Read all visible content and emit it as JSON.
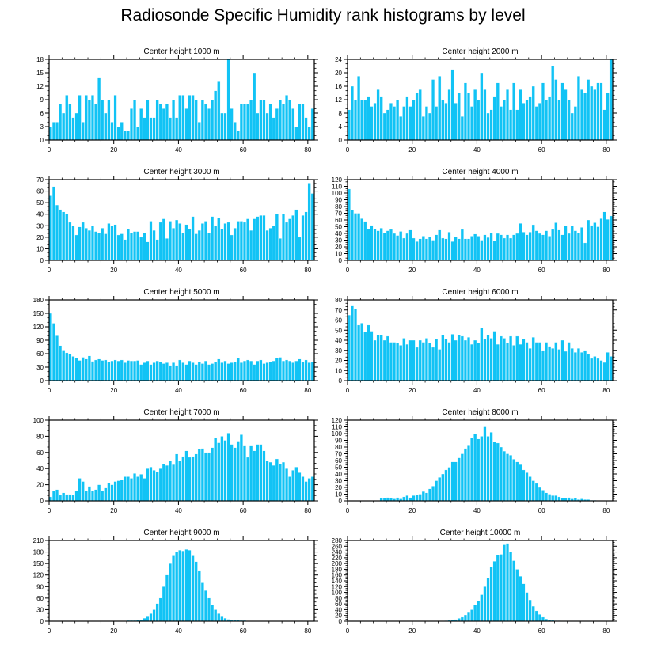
{
  "title": "Radiosonde Specific Humidity rank histograms by level",
  "colors": {
    "bar": "#11c3f5",
    "bar_stroke": "#ffffff",
    "axis": "#000000"
  },
  "chart_data": [
    {
      "type": "bar",
      "title": "Center height 1000 m",
      "xlabel": "",
      "ylabel": "",
      "xlim": [
        0,
        82
      ],
      "ylim": [
        0,
        18
      ],
      "xticks": [
        0,
        20,
        40,
        60,
        80
      ],
      "yticks": [
        0,
        3,
        6,
        9,
        12,
        15,
        18
      ],
      "values": [
        3,
        4,
        4,
        8,
        6,
        10,
        8,
        5,
        6,
        10,
        4,
        10,
        9,
        10,
        8,
        14,
        9,
        6,
        9,
        4,
        10,
        3,
        4,
        2,
        2,
        7,
        9,
        3,
        7,
        5,
        9,
        5,
        5,
        9,
        8,
        7,
        8,
        5,
        9,
        5,
        10,
        10,
        7,
        10,
        10,
        9,
        4,
        9,
        8,
        7,
        9,
        11,
        13,
        6,
        6,
        18,
        7,
        4,
        2,
        8,
        8,
        8,
        9,
        15,
        6,
        9,
        9,
        6,
        8,
        5,
        7,
        9,
        8,
        10,
        9,
        7,
        3,
        8,
        8,
        5,
        3,
        7
      ]
    },
    {
      "type": "bar",
      "title": "Center height 2000 m",
      "xlabel": "",
      "ylabel": "",
      "xlim": [
        0,
        82
      ],
      "ylim": [
        0,
        24
      ],
      "xticks": [
        0,
        20,
        40,
        60,
        80
      ],
      "yticks": [
        0,
        4,
        8,
        12,
        16,
        20,
        24
      ],
      "values": [
        9,
        16,
        12,
        19,
        12,
        12,
        13,
        10,
        11,
        15,
        13,
        8,
        9,
        11,
        10,
        12,
        7,
        10,
        13,
        10,
        12,
        14,
        15,
        7,
        10,
        8,
        18,
        10,
        19,
        12,
        11,
        15,
        21,
        11,
        14,
        7,
        17,
        14,
        10,
        15,
        12,
        20,
        15,
        8,
        9,
        13,
        17,
        10,
        12,
        15,
        9,
        17,
        9,
        15,
        11,
        12,
        13,
        16,
        10,
        11,
        17,
        12,
        13,
        22,
        18,
        12,
        17,
        15,
        12,
        8,
        10,
        19,
        15,
        14,
        18,
        16,
        15,
        17,
        17,
        9,
        14,
        24
      ]
    },
    {
      "type": "bar",
      "title": "Center height 3000 m",
      "xlabel": "",
      "ylabel": "",
      "xlim": [
        0,
        82
      ],
      "ylim": [
        0,
        70
      ],
      "xticks": [
        0,
        20,
        40,
        60,
        80
      ],
      "yticks": [
        0,
        10,
        20,
        30,
        40,
        50,
        60,
        70
      ],
      "values": [
        56,
        64,
        48,
        44,
        42,
        40,
        33,
        30,
        22,
        29,
        33,
        28,
        26,
        30,
        25,
        24,
        28,
        23,
        32,
        30,
        31,
        22,
        23,
        18,
        27,
        24,
        25,
        25,
        20,
        24,
        16,
        34,
        26,
        18,
        33,
        36,
        19,
        34,
        28,
        35,
        32,
        24,
        31,
        27,
        38,
        23,
        26,
        32,
        34,
        24,
        38,
        30,
        37,
        27,
        32,
        33,
        22,
        28,
        34,
        34,
        33,
        36,
        26,
        36,
        38,
        39,
        39,
        26,
        28,
        30,
        40,
        19,
        40,
        33,
        36,
        39,
        44,
        20,
        39,
        42,
        67,
        58
      ]
    },
    {
      "type": "bar",
      "title": "Center height 4000 m",
      "xlabel": "",
      "ylabel": "",
      "xlim": [
        0,
        82
      ],
      "ylim": [
        0,
        120
      ],
      "xticks": [
        0,
        20,
        40,
        60,
        80
      ],
      "yticks": [
        0,
        10,
        20,
        30,
        40,
        50,
        60,
        70,
        80,
        90,
        100,
        110,
        120
      ],
      "values": [
        106,
        75,
        70,
        70,
        62,
        58,
        47,
        52,
        47,
        44,
        48,
        41,
        44,
        46,
        40,
        37,
        43,
        33,
        40,
        45,
        33,
        28,
        32,
        36,
        32,
        35,
        30,
        38,
        45,
        33,
        32,
        42,
        28,
        35,
        32,
        46,
        32,
        32,
        36,
        39,
        36,
        30,
        38,
        34,
        41,
        29,
        40,
        38,
        33,
        38,
        33,
        38,
        40,
        55,
        42,
        38,
        42,
        53,
        44,
        40,
        38,
        44,
        36,
        46,
        56,
        45,
        38,
        51,
        40,
        51,
        44,
        41,
        49,
        26,
        60,
        52,
        56,
        50,
        62,
        72,
        61,
        66
      ]
    },
    {
      "type": "bar",
      "title": "Center height 5000 m",
      "xlabel": "",
      "ylabel": "",
      "xlim": [
        0,
        82
      ],
      "ylim": [
        0,
        180
      ],
      "xticks": [
        0,
        20,
        40,
        60,
        80
      ],
      "yticks": [
        0,
        30,
        60,
        90,
        120,
        150,
        180
      ],
      "values": [
        150,
        128,
        100,
        78,
        68,
        62,
        60,
        54,
        50,
        45,
        52,
        48,
        55,
        43,
        46,
        48,
        45,
        46,
        42,
        44,
        46,
        44,
        46,
        40,
        45,
        44,
        44,
        45,
        36,
        40,
        44,
        36,
        40,
        44,
        42,
        38,
        40,
        34,
        40,
        34,
        46,
        40,
        36,
        44,
        40,
        36,
        42,
        38,
        44,
        36,
        38,
        42,
        48,
        40,
        44,
        38,
        40,
        42,
        50,
        40,
        44,
        46,
        44,
        36,
        44,
        46,
        38,
        40,
        42,
        44,
        50,
        52,
        44,
        46,
        44,
        40,
        44,
        48,
        42,
        46,
        40,
        42
      ]
    },
    {
      "type": "bar",
      "title": "Center height 6000 m",
      "xlabel": "",
      "ylabel": "",
      "xlim": [
        0,
        82
      ],
      "ylim": [
        0,
        80
      ],
      "xticks": [
        0,
        20,
        40,
        60,
        80
      ],
      "yticks": [
        0,
        10,
        20,
        30,
        40,
        50,
        60,
        70,
        80
      ],
      "values": [
        65,
        74,
        71,
        55,
        57,
        48,
        55,
        49,
        40,
        45,
        45,
        40,
        44,
        38,
        38,
        37,
        35,
        42,
        36,
        40,
        40,
        33,
        40,
        38,
        42,
        37,
        33,
        41,
        31,
        45,
        41,
        38,
        46,
        40,
        45,
        44,
        40,
        43,
        36,
        40,
        37,
        52,
        41,
        45,
        42,
        49,
        36,
        44,
        42,
        37,
        44,
        35,
        44,
        36,
        41,
        38,
        32,
        43,
        38,
        38,
        30,
        38,
        34,
        32,
        38,
        31,
        40,
        29,
        38,
        32,
        28,
        32,
        28,
        30,
        26,
        22,
        24,
        22,
        20,
        18,
        28,
        24
      ]
    },
    {
      "type": "bar",
      "title": "Center height 7000 m",
      "xlabel": "",
      "ylabel": "",
      "xlim": [
        0,
        82
      ],
      "ylim": [
        0,
        100
      ],
      "xticks": [
        0,
        20,
        40,
        60,
        80
      ],
      "yticks": [
        0,
        20,
        40,
        60,
        80,
        100
      ],
      "values": [
        5,
        12,
        14,
        7,
        10,
        8,
        8,
        7,
        12,
        28,
        24,
        12,
        18,
        12,
        14,
        20,
        12,
        16,
        22,
        20,
        24,
        25,
        26,
        30,
        30,
        28,
        34,
        30,
        33,
        28,
        40,
        42,
        38,
        36,
        40,
        46,
        44,
        50,
        45,
        58,
        50,
        55,
        62,
        54,
        55,
        58,
        64,
        65,
        60,
        60,
        66,
        78,
        72,
        80,
        75,
        84,
        70,
        66,
        74,
        82,
        68,
        54,
        68,
        62,
        70,
        70,
        62,
        50,
        48,
        44,
        52,
        46,
        48,
        40,
        30,
        38,
        42,
        35,
        30,
        24,
        28,
        30
      ]
    },
    {
      "type": "bar",
      "title": "Center height 8000 m",
      "xlabel": "",
      "ylabel": "",
      "xlim": [
        0,
        82
      ],
      "ylim": [
        0,
        120
      ],
      "xticks": [
        0,
        20,
        40,
        60,
        80
      ],
      "yticks": [
        0,
        10,
        20,
        30,
        40,
        50,
        60,
        70,
        80,
        90,
        100,
        110,
        120
      ],
      "values": [
        0,
        0,
        0,
        0,
        0,
        0,
        0,
        0,
        0,
        0,
        4,
        4,
        5,
        4,
        3,
        5,
        3,
        6,
        8,
        5,
        8,
        9,
        10,
        14,
        12,
        18,
        22,
        30,
        35,
        40,
        46,
        50,
        58,
        58,
        64,
        70,
        78,
        82,
        94,
        100,
        92,
        96,
        110,
        96,
        102,
        88,
        86,
        80,
        74,
        70,
        68,
        62,
        58,
        54,
        46,
        42,
        36,
        30,
        26,
        20,
        16,
        12,
        10,
        8,
        8,
        6,
        4,
        4,
        5,
        3,
        4,
        2,
        3,
        2,
        2,
        1,
        1,
        0,
        0,
        0,
        0,
        0
      ]
    },
    {
      "type": "bar",
      "title": "Center height 9000 m",
      "xlabel": "",
      "ylabel": "",
      "xlim": [
        0,
        82
      ],
      "ylim": [
        0,
        210
      ],
      "xticks": [
        0,
        20,
        40,
        60,
        80
      ],
      "yticks": [
        0,
        30,
        60,
        90,
        120,
        150,
        180,
        210
      ],
      "values": [
        0,
        0,
        0,
        0,
        0,
        0,
        0,
        0,
        0,
        0,
        0,
        0,
        0,
        0,
        0,
        0,
        0,
        0,
        0,
        0,
        0,
        0,
        0,
        0,
        2,
        2,
        2,
        3,
        4,
        8,
        12,
        20,
        30,
        46,
        60,
        90,
        120,
        150,
        170,
        180,
        185,
        183,
        187,
        185,
        170,
        155,
        130,
        100,
        80,
        60,
        42,
        30,
        20,
        12,
        8,
        5,
        4,
        3,
        3,
        2,
        2,
        1,
        1,
        1,
        0,
        0,
        0,
        0,
        0,
        0,
        0,
        0,
        0,
        0,
        0,
        0,
        0,
        0,
        0,
        0,
        0,
        0
      ]
    },
    {
      "type": "bar",
      "title": "Center height 10000 m",
      "xlabel": "",
      "ylabel": "",
      "xlim": [
        0,
        82
      ],
      "ylim": [
        0,
        280
      ],
      "xticks": [
        0,
        20,
        40,
        60,
        80
      ],
      "yticks": [
        0,
        20,
        40,
        60,
        80,
        100,
        120,
        140,
        160,
        180,
        200,
        220,
        240,
        260,
        280
      ],
      "values": [
        0,
        0,
        0,
        0,
        0,
        0,
        0,
        0,
        0,
        0,
        0,
        0,
        0,
        0,
        0,
        0,
        0,
        0,
        0,
        0,
        0,
        0,
        0,
        0,
        0,
        0,
        0,
        0,
        0,
        1,
        2,
        3,
        4,
        6,
        10,
        14,
        22,
        30,
        40,
        56,
        70,
        92,
        120,
        150,
        188,
        208,
        230,
        232,
        265,
        270,
        240,
        210,
        180,
        156,
        130,
        100,
        74,
        52,
        36,
        24,
        14,
        8,
        5,
        3,
        2,
        2,
        1,
        1,
        0,
        0,
        0,
        0,
        0,
        0,
        0,
        0,
        0,
        0,
        0,
        0,
        0,
        0
      ]
    }
  ]
}
